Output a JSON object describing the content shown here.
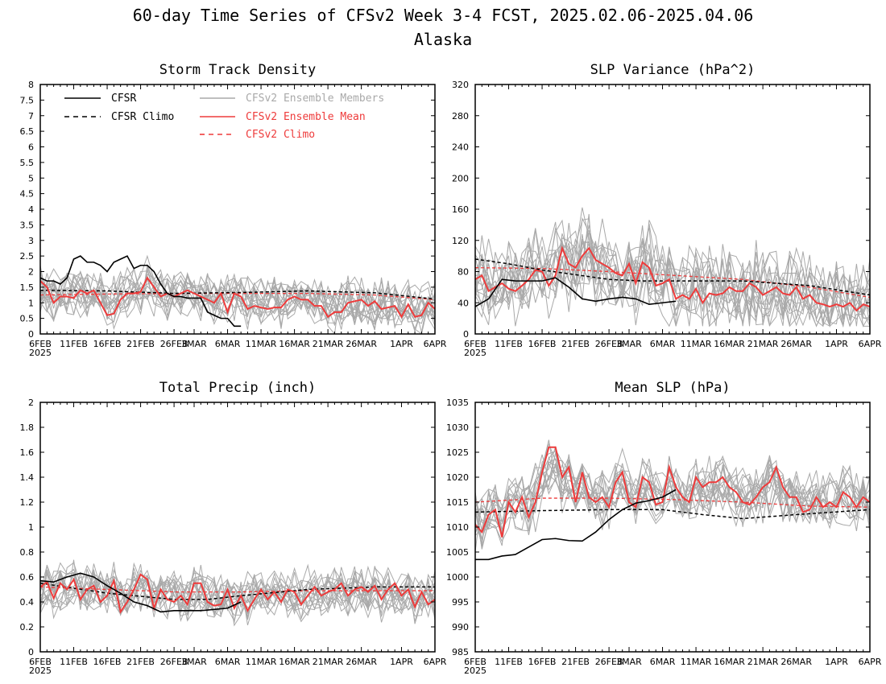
{
  "figure": {
    "title_line1": "60-day Time Series of CFSv2 Week 3-4 FCST, 2025.02.06-2025.04.06",
    "title_line2": "Alaska"
  },
  "colors": {
    "cfsr": "#000000",
    "ensemble_members": "#a9a9a9",
    "ensemble_mean": "#ee3b3b",
    "cfsv2_climo": "#ee3b3b",
    "axes": "#000000"
  },
  "legend": {
    "cfsr": "CFSR",
    "cfsr_climo": "CFSR Climo",
    "members": "CFSv2 Ensemble Members",
    "mean": "CFSv2 Ensemble Mean",
    "cfsv2_climo": "CFSv2 Climo"
  },
  "x_axis": {
    "tick_labels": [
      "6FEB",
      "11FEB",
      "16FEB",
      "21FEB",
      "26FEB",
      "3MAR",
      "6MAR",
      "11MAR",
      "16MAR",
      "21MAR",
      "26MAR",
      "1APR",
      "6APR"
    ],
    "tick_days": [
      0,
      5,
      10,
      15,
      20,
      23,
      28,
      33,
      38,
      43,
      48,
      54,
      59
    ],
    "year_label": "2025",
    "xlim": [
      0,
      59
    ]
  },
  "chart_data": [
    {
      "type": "line",
      "title": "Storm Track Density",
      "ylim": [
        0,
        8
      ],
      "yticks": [
        "0",
        "0.5",
        "1",
        "1.5",
        "2",
        "2.5",
        "3",
        "3.5",
        "4",
        "4.5",
        "5",
        "5.5",
        "6",
        "6.5",
        "7",
        "7.5",
        "8"
      ],
      "ytick_values": [
        0,
        0.5,
        1,
        1.5,
        2,
        2.5,
        3,
        3.5,
        4,
        4.5,
        5,
        5.5,
        6,
        6.5,
        7,
        7.5,
        8
      ],
      "show_legend": true,
      "cfsr": {
        "x": [
          0,
          1,
          2,
          3,
          4,
          5,
          6,
          7,
          8,
          9,
          10,
          11,
          12,
          13,
          14,
          15,
          16,
          17,
          18,
          19,
          20,
          21,
          22,
          23,
          24,
          25,
          26,
          27,
          28,
          29,
          30
        ],
        "y": [
          1.8,
          1.7,
          1.7,
          1.6,
          1.8,
          2.4,
          2.5,
          2.3,
          2.3,
          2.2,
          2.0,
          2.3,
          2.4,
          2.5,
          2.1,
          2.2,
          2.2,
          2.0,
          1.6,
          1.3,
          1.2,
          1.2,
          1.15,
          1.15,
          1.15,
          0.7,
          0.6,
          0.5,
          0.5,
          0.25,
          0.25
        ]
      },
      "cfsr_climo": {
        "x": [
          0,
          10,
          20,
          30,
          40,
          50,
          59
        ],
        "y": [
          1.4,
          1.38,
          1.3,
          1.33,
          1.38,
          1.32,
          1.12
        ]
      },
      "mean": {
        "x": [
          0,
          1,
          2,
          3,
          4,
          5,
          6,
          7,
          8,
          9,
          10,
          11,
          12,
          13,
          14,
          15,
          16,
          17,
          18,
          19,
          20,
          21,
          22,
          23,
          24,
          25,
          26,
          27,
          28,
          29,
          30,
          31,
          32,
          33,
          34,
          35,
          36,
          37,
          38,
          39,
          40,
          41,
          42,
          43,
          44,
          45,
          46,
          47,
          48,
          49,
          50,
          51,
          52,
          53,
          54,
          55,
          56,
          57,
          58,
          59
        ],
        "y": [
          1.7,
          1.5,
          1.0,
          1.2,
          1.2,
          1.15,
          1.4,
          1.3,
          1.4,
          1.0,
          0.6,
          0.65,
          1.1,
          1.3,
          1.3,
          1.35,
          1.8,
          1.5,
          1.2,
          1.3,
          1.2,
          1.3,
          1.4,
          1.3,
          1.2,
          1.1,
          1.0,
          1.3,
          0.7,
          1.3,
          1.2,
          0.8,
          0.9,
          0.85,
          0.8,
          0.85,
          0.85,
          1.1,
          1.2,
          1.1,
          1.1,
          0.9,
          0.9,
          0.55,
          0.7,
          0.7,
          1.0,
          1.05,
          1.1,
          0.9,
          1.05,
          0.8,
          0.85,
          0.9,
          0.55,
          0.95,
          0.55,
          0.6,
          1.0,
          0.8
        ]
      },
      "cfsv2_climo": {
        "x": [
          0,
          10,
          20,
          30,
          40,
          50,
          59
        ],
        "y": [
          1.25,
          1.28,
          1.3,
          1.3,
          1.3,
          1.25,
          1.1
        ]
      },
      "members": {
        "base": [
          1.4,
          1.3,
          1.2,
          1.3,
          1.2,
          1.3,
          1.4,
          1.3,
          1.3,
          1.1,
          1.0,
          1.0,
          1.2,
          1.4,
          1.5,
          1.4,
          1.6,
          1.4,
          1.3,
          1.3,
          1.2,
          1.3,
          1.4,
          1.3,
          1.2,
          1.2,
          1.1,
          1.3,
          1.0,
          1.2,
          1.2,
          1.0,
          1.0,
          1.0,
          1.0,
          1.0,
          1.0,
          1.1,
          1.2,
          1.1,
          1.1,
          1.0,
          1.0,
          0.8,
          0.9,
          0.9,
          1.1,
          1.1,
          1.1,
          1.0,
          1.0,
          0.9,
          0.9,
          0.9,
          0.7,
          0.9,
          0.7,
          0.7,
          0.9,
          0.8
        ],
        "spread": 0.8,
        "count": 16,
        "min": 0
      }
    },
    {
      "type": "line",
      "title": "SLP Variance (hPa^2)",
      "ylim": [
        0,
        320
      ],
      "yticks": [
        "0",
        "40",
        "80",
        "120",
        "160",
        "200",
        "240",
        "280",
        "320"
      ],
      "ytick_values": [
        0,
        40,
        80,
        120,
        160,
        200,
        240,
        280,
        320
      ],
      "show_legend": false,
      "cfsr": {
        "x": [
          0,
          2,
          4,
          6,
          8,
          10,
          12,
          14,
          16,
          18,
          20,
          22,
          24,
          26,
          28,
          30
        ],
        "y": [
          35,
          45,
          70,
          68,
          68,
          68,
          72,
          60,
          45,
          42,
          45,
          47,
          45,
          38,
          40,
          42
        ]
      },
      "cfsr_climo": {
        "x": [
          0,
          5,
          10,
          15,
          20,
          25,
          30,
          40,
          50,
          59
        ],
        "y": [
          96,
          90,
          82,
          76,
          70,
          68,
          68,
          68,
          62,
          50
        ]
      },
      "mean": {
        "x": [
          0,
          1,
          2,
          3,
          4,
          5,
          6,
          7,
          8,
          9,
          10,
          11,
          12,
          13,
          14,
          15,
          16,
          17,
          18,
          19,
          20,
          21,
          22,
          23,
          24,
          25,
          26,
          27,
          28,
          29,
          30,
          31,
          32,
          33,
          34,
          35,
          36,
          37,
          38,
          39,
          40,
          41,
          42,
          43,
          44,
          45,
          46,
          47,
          48,
          49,
          50,
          51,
          52,
          53,
          54,
          55,
          56,
          57,
          58,
          59
        ],
        "y": [
          70,
          75,
          55,
          60,
          65,
          58,
          55,
          62,
          70,
          82,
          80,
          62,
          75,
          110,
          90,
          85,
          100,
          110,
          95,
          90,
          85,
          78,
          75,
          90,
          65,
          92,
          85,
          62,
          65,
          70,
          45,
          50,
          45,
          58,
          40,
          52,
          50,
          52,
          60,
          55,
          55,
          65,
          60,
          50,
          55,
          60,
          52,
          50,
          60,
          45,
          50,
          40,
          38,
          35,
          38,
          35,
          40,
          30,
          38,
          35
        ]
      },
      "cfsv2_climo": {
        "x": [
          0,
          10,
          20,
          30,
          40,
          50,
          59
        ],
        "y": [
          85,
          84,
          80,
          75,
          70,
          60,
          47
        ]
      },
      "members": {
        "base": [
          70,
          72,
          60,
          62,
          65,
          62,
          60,
          65,
          72,
          85,
          82,
          70,
          80,
          100,
          90,
          88,
          100,
          110,
          95,
          90,
          85,
          80,
          78,
          88,
          70,
          88,
          82,
          68,
          68,
          70,
          55,
          58,
          55,
          62,
          52,
          58,
          55,
          58,
          62,
          58,
          58,
          62,
          60,
          55,
          58,
          60,
          55,
          55,
          60,
          50,
          52,
          45,
          42,
          40,
          42,
          40,
          42,
          35,
          40,
          38
        ],
        "spread": 55,
        "count": 16,
        "min": 10
      }
    },
    {
      "type": "line",
      "title": "Total Precip (inch)",
      "ylim": [
        0,
        2
      ],
      "yticks": [
        "0",
        "0.2",
        "0.4",
        "0.6",
        "0.8",
        "1",
        "1.2",
        "1.4",
        "1.6",
        "1.8",
        "2"
      ],
      "ytick_values": [
        0,
        0.2,
        0.4,
        0.6,
        0.8,
        1.0,
        1.2,
        1.4,
        1.6,
        1.8,
        2.0
      ],
      "show_legend": false,
      "cfsr": {
        "x": [
          0,
          2,
          4,
          6,
          8,
          10,
          12,
          14,
          16,
          18,
          20,
          22,
          24,
          26,
          28,
          30
        ],
        "y": [
          0.57,
          0.56,
          0.6,
          0.63,
          0.6,
          0.53,
          0.47,
          0.4,
          0.37,
          0.32,
          0.33,
          0.33,
          0.33,
          0.34,
          0.35,
          0.4
        ]
      },
      "cfsr_climo": {
        "x": [
          0,
          10,
          20,
          25,
          30,
          40,
          50,
          59
        ],
        "y": [
          0.55,
          0.47,
          0.42,
          0.42,
          0.45,
          0.5,
          0.52,
          0.52
        ]
      },
      "mean": {
        "x": [
          0,
          1,
          2,
          3,
          4,
          5,
          6,
          7,
          8,
          9,
          10,
          11,
          12,
          13,
          14,
          15,
          16,
          17,
          18,
          19,
          20,
          21,
          22,
          23,
          24,
          25,
          26,
          27,
          28,
          29,
          30,
          31,
          32,
          33,
          34,
          35,
          36,
          37,
          38,
          39,
          40,
          41,
          42,
          43,
          44,
          45,
          46,
          47,
          48,
          49,
          50,
          51,
          52,
          53,
          54,
          55,
          56,
          57,
          58,
          59
        ],
        "y": [
          0.52,
          0.56,
          0.43,
          0.55,
          0.5,
          0.58,
          0.42,
          0.5,
          0.53,
          0.4,
          0.45,
          0.57,
          0.32,
          0.4,
          0.5,
          0.62,
          0.58,
          0.35,
          0.5,
          0.42,
          0.4,
          0.45,
          0.38,
          0.55,
          0.55,
          0.4,
          0.37,
          0.38,
          0.5,
          0.35,
          0.45,
          0.33,
          0.42,
          0.5,
          0.42,
          0.48,
          0.4,
          0.5,
          0.48,
          0.38,
          0.45,
          0.52,
          0.45,
          0.48,
          0.5,
          0.55,
          0.45,
          0.5,
          0.52,
          0.48,
          0.53,
          0.42,
          0.5,
          0.55,
          0.45,
          0.5,
          0.36,
          0.48,
          0.38,
          0.42
        ]
      },
      "cfsv2_climo": {
        "x": [
          0,
          10,
          20,
          30,
          40,
          50,
          59
        ],
        "y": [
          0.52,
          0.5,
          0.48,
          0.48,
          0.49,
          0.49,
          0.49
        ]
      },
      "members": {
        "base": [
          0.5,
          0.52,
          0.48,
          0.52,
          0.5,
          0.55,
          0.45,
          0.5,
          0.52,
          0.45,
          0.47,
          0.52,
          0.4,
          0.45,
          0.5,
          0.55,
          0.52,
          0.42,
          0.48,
          0.45,
          0.43,
          0.45,
          0.42,
          0.5,
          0.5,
          0.45,
          0.42,
          0.43,
          0.48,
          0.42,
          0.45,
          0.42,
          0.45,
          0.48,
          0.45,
          0.48,
          0.45,
          0.48,
          0.47,
          0.43,
          0.46,
          0.5,
          0.46,
          0.48,
          0.48,
          0.5,
          0.46,
          0.48,
          0.5,
          0.47,
          0.5,
          0.45,
          0.48,
          0.5,
          0.46,
          0.48,
          0.42,
          0.47,
          0.42,
          0.45
        ],
        "spread": 0.2,
        "count": 16,
        "min": 0.1
      }
    },
    {
      "type": "line",
      "title": "Mean SLP (hPa)",
      "ylim": [
        985,
        1035
      ],
      "yticks": [
        "985",
        "990",
        "995",
        "1000",
        "1005",
        "1010",
        "1015",
        "1020",
        "1025",
        "1030",
        "1035"
      ],
      "ytick_values": [
        985,
        990,
        995,
        1000,
        1005,
        1010,
        1015,
        1020,
        1025,
        1030,
        1035
      ],
      "show_legend": false,
      "cfsr": {
        "x": [
          0,
          2,
          4,
          6,
          8,
          10,
          12,
          14,
          16,
          18,
          20,
          22,
          24,
          26,
          28,
          30
        ],
        "y": [
          1003.5,
          1003.5,
          1004.2,
          1004.5,
          1006.0,
          1007.5,
          1007.7,
          1007.3,
          1007.2,
          1009.0,
          1011.5,
          1013.5,
          1014.8,
          1015.3,
          1016.0,
          1017.5
        ]
      },
      "cfsr_climo": {
        "x": [
          0,
          10,
          20,
          28,
          34,
          40,
          48,
          59
        ],
        "y": [
          1013,
          1013.3,
          1013.5,
          1013.5,
          1012.5,
          1011.7,
          1012.5,
          1013.5
        ]
      },
      "mean": {
        "x": [
          0,
          1,
          2,
          3,
          4,
          5,
          6,
          7,
          8,
          9,
          10,
          11,
          12,
          13,
          14,
          15,
          16,
          17,
          18,
          19,
          20,
          21,
          22,
          23,
          24,
          25,
          26,
          27,
          28,
          29,
          30,
          31,
          32,
          33,
          34,
          35,
          36,
          37,
          38,
          39,
          40,
          41,
          42,
          43,
          44,
          45,
          46,
          47,
          48,
          49,
          50,
          51,
          52,
          53,
          54,
          55,
          56,
          57,
          58,
          59
        ],
        "y": [
          1010.5,
          1009,
          1012.5,
          1013.5,
          1008,
          1015,
          1013,
          1016,
          1012,
          1015,
          1021,
          1026,
          1026,
          1020,
          1022,
          1015,
          1021,
          1016,
          1015,
          1016,
          1014,
          1019,
          1021,
          1015,
          1014,
          1020,
          1019,
          1014.5,
          1015,
          1022,
          1018,
          1016,
          1015,
          1020,
          1018,
          1019,
          1019,
          1020,
          1018,
          1017,
          1015,
          1014.5,
          1016,
          1018,
          1019,
          1022,
          1018,
          1016,
          1016,
          1013,
          1013.5,
          1016,
          1014,
          1015,
          1014,
          1017,
          1016,
          1014,
          1016,
          1015
        ]
      },
      "cfsv2_climo": {
        "x": [
          0,
          10,
          20,
          30,
          40,
          50,
          59
        ],
        "y": [
          1015,
          1015.8,
          1015.8,
          1015.5,
          1015,
          1014.2,
          1014
        ]
      },
      "members": {
        "base": [
          1012,
          1011,
          1013,
          1014,
          1011,
          1015,
          1014,
          1016,
          1014,
          1016,
          1019,
          1022,
          1022,
          1019,
          1020,
          1016,
          1019,
          1016,
          1016,
          1016,
          1015,
          1018,
          1019,
          1016,
          1015,
          1018,
          1018,
          1015.5,
          1016,
          1019,
          1017,
          1016,
          1016,
          1018,
          1017,
          1018,
          1018,
          1018.5,
          1017.5,
          1017,
          1016,
          1015.5,
          1016,
          1017,
          1018,
          1019.5,
          1017.5,
          1016,
          1016,
          1014.5,
          1014.5,
          1016,
          1015,
          1015.5,
          1015,
          1016.5,
          1016,
          1015,
          1016,
          1015.5
        ],
        "spread": 6,
        "count": 16,
        "min": 985
      }
    }
  ]
}
